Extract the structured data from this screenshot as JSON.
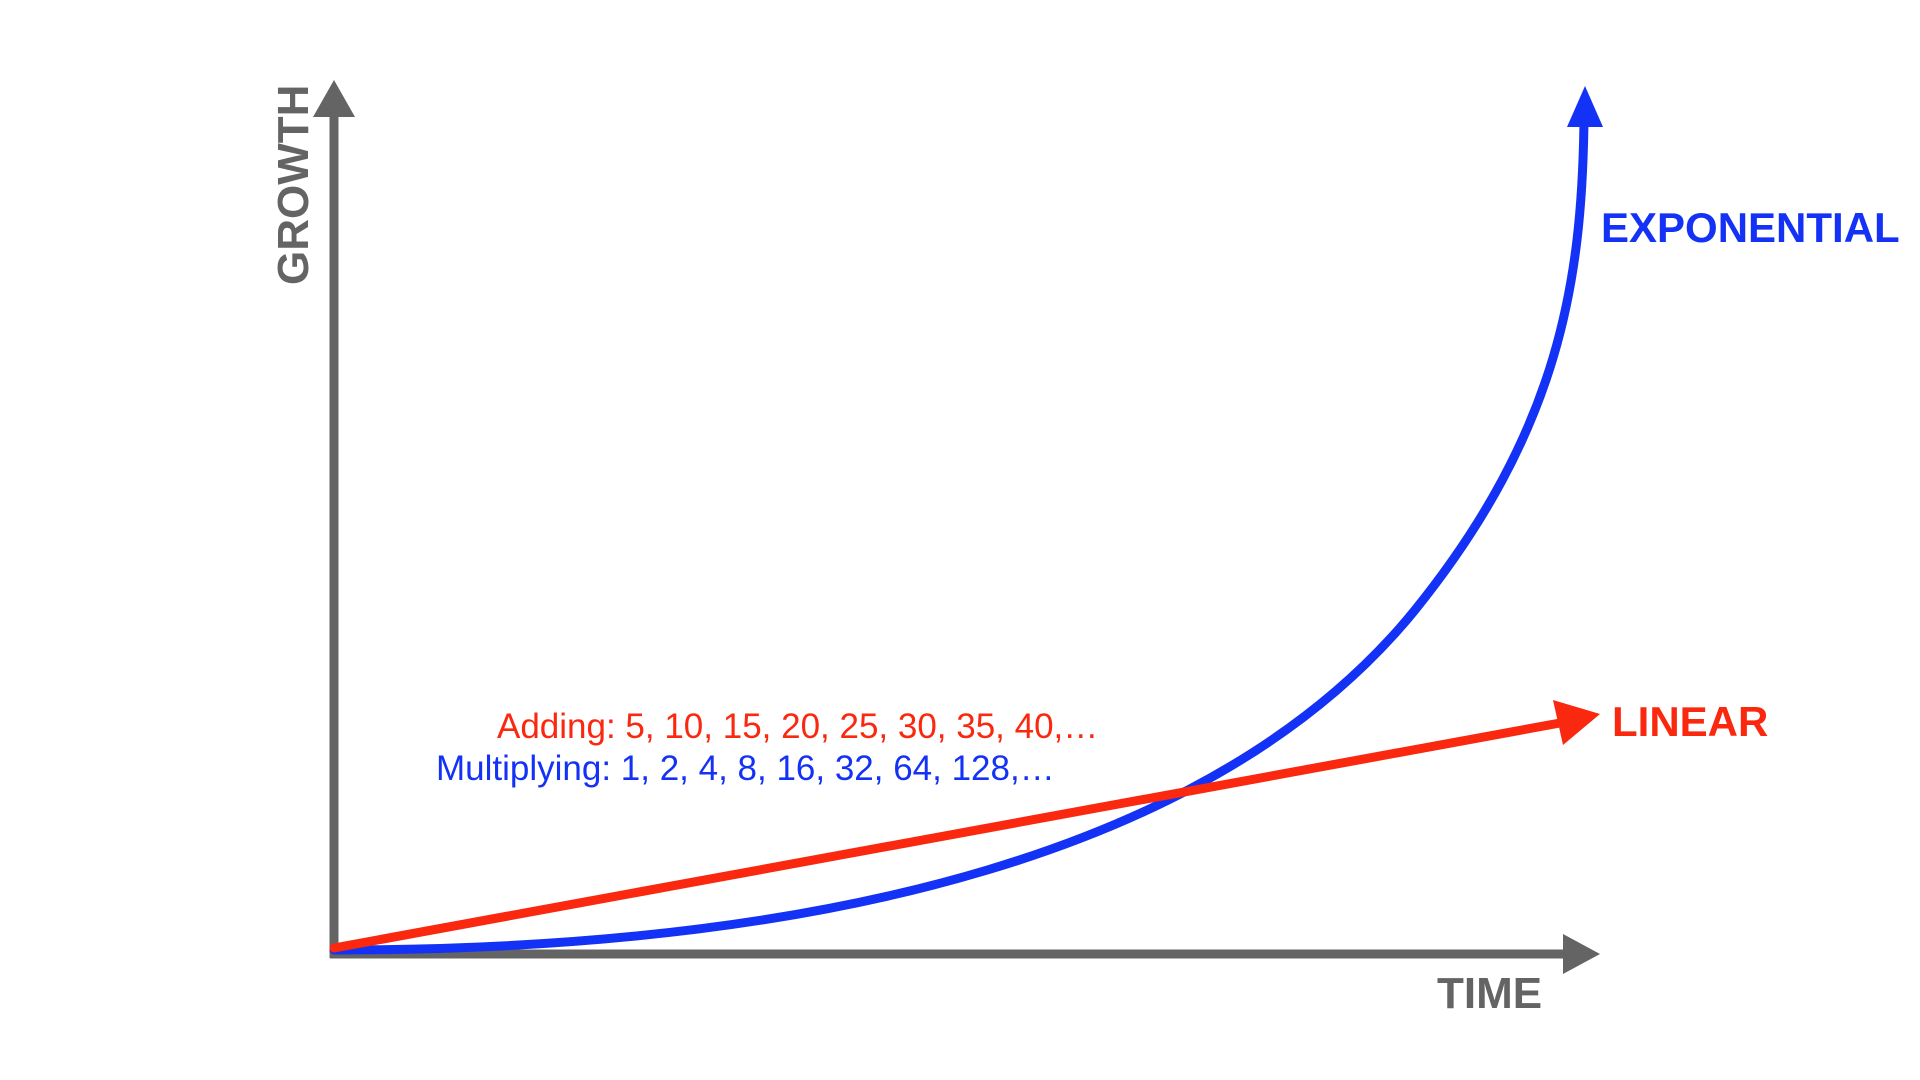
{
  "axes": {
    "x_label": "TIME",
    "y_label": "GROWTH"
  },
  "series": {
    "exponential_label": "EXPONENTIAL",
    "linear_label": "LINEAR"
  },
  "notes": {
    "adding": "Adding: 5, 10, 15, 20, 25, 30, 35, 40,…",
    "multiplying": "Multiplying: 1, 2, 4, 8, 16, 32, 64, 128,…"
  },
  "colors": {
    "axis": "#646464",
    "exponential": "#1432f5",
    "linear": "#fa280f",
    "background": "#ffffff"
  }
}
